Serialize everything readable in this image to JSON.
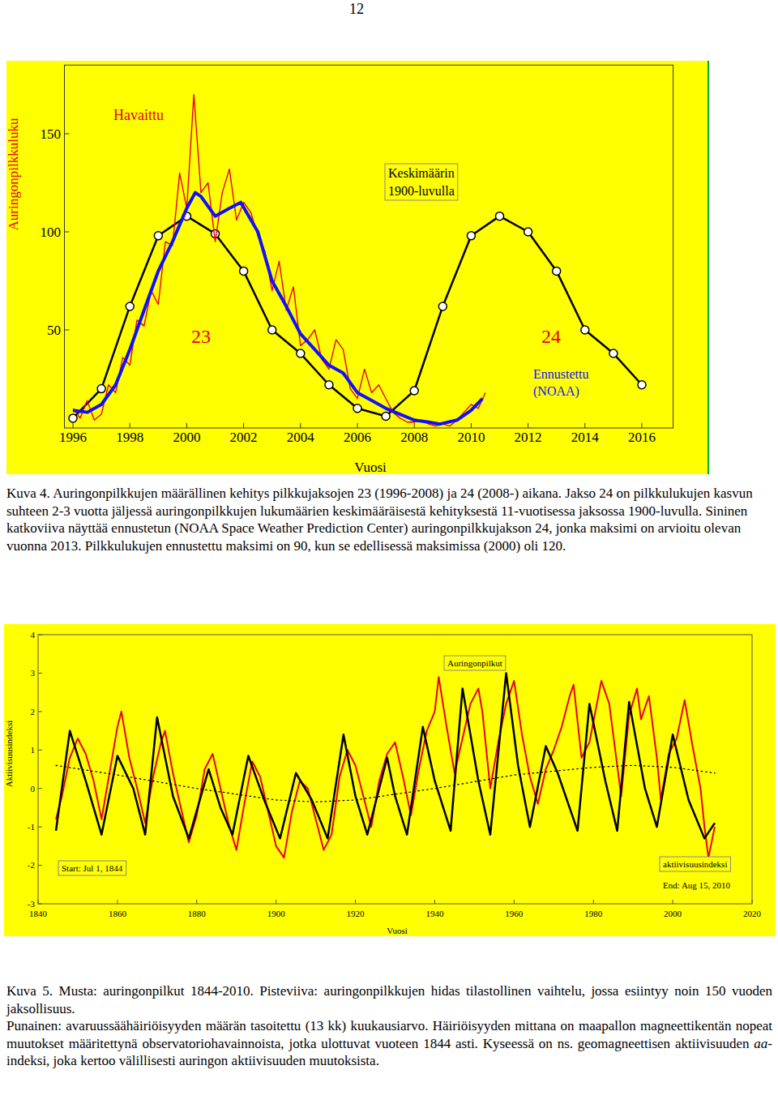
{
  "page_number": "12",
  "chart_data": [
    {
      "type": "line",
      "xlabel": "Vuosi",
      "ylabel": "Auringonpilkkuluku",
      "xlim": [
        1995.7,
        2017.1
      ],
      "ylim": [
        0,
        185
      ],
      "xticks": [
        1996,
        1998,
        2000,
        2002,
        2004,
        2006,
        2008,
        2010,
        2012,
        2014,
        2016
      ],
      "yticks": [
        50,
        100,
        150
      ],
      "annotations": [
        "Havaittu",
        [
          "Keskimäärin",
          "1900-luvulla"
        ],
        "23",
        "24",
        [
          "Ennustettu",
          "(NOAA)"
        ]
      ],
      "series": [
        {
          "color": "#000000",
          "marker": "circle",
          "x": [
            1996,
            1997,
            1998,
            1999,
            2000,
            2001,
            2002,
            2003,
            2004,
            2005,
            2006,
            2007,
            2008,
            2009,
            2010,
            2011,
            2012,
            2013,
            2014,
            2015,
            2016
          ],
          "values": [
            5,
            20,
            62,
            98,
            108,
            99,
            80,
            50,
            38,
            22,
            10,
            6,
            19,
            62,
            98,
            108,
            100,
            80,
            50,
            38,
            22
          ]
        },
        {
          "color": "#e8001c",
          "x": [
            1996,
            1996.25,
            1996.5,
            1996.75,
            1997,
            1997.25,
            1997.5,
            1997.75,
            1998,
            1998.25,
            1998.5,
            1998.75,
            1999,
            1999.25,
            1999.5,
            1999.75,
            2000,
            2000.25,
            2000.5,
            2000.75,
            2001,
            2001.25,
            2001.5,
            2001.75,
            2002,
            2002.25,
            2002.5,
            2002.75,
            2003,
            2003.25,
            2003.5,
            2003.75,
            2004,
            2004.25,
            2004.5,
            2004.75,
            2005,
            2005.25,
            2005.5,
            2005.75,
            2006,
            2006.25,
            2006.5,
            2006.75,
            2007,
            2007.25,
            2007.5,
            2007.75,
            2008,
            2008.25,
            2008.5,
            2008.75,
            2009,
            2009.25,
            2009.5,
            2009.75,
            2010,
            2010.25,
            2010.5
          ],
          "values": [
            10,
            5,
            14,
            4,
            7,
            22,
            18,
            36,
            32,
            55,
            52,
            70,
            63,
            95,
            93,
            130,
            112,
            170,
            120,
            125,
            95,
            120,
            132,
            106,
            115,
            110,
            98,
            90,
            70,
            85,
            60,
            72,
            42,
            45,
            50,
            35,
            30,
            45,
            40,
            20,
            15,
            30,
            18,
            22,
            15,
            8,
            5,
            3,
            3,
            4,
            2,
            1,
            2,
            1,
            4,
            8,
            12,
            10,
            18
          ]
        },
        {
          "color": "#1010ff",
          "x": [
            1996,
            1996.5,
            1997,
            1997.5,
            1998,
            1998.5,
            1999,
            1999.5,
            2000,
            2000.3,
            2000.5,
            2001,
            2001.5,
            2001.9,
            2002.5,
            2003,
            2003.5,
            2004,
            2004.5,
            2005,
            2005.5,
            2006,
            2006.5,
            2007,
            2007.5,
            2008,
            2008.5,
            2008.9,
            2009.5,
            2010,
            2010.4
          ],
          "values": [
            9,
            8,
            12,
            22,
            40,
            60,
            80,
            95,
            112,
            120,
            118,
            108,
            112,
            115,
            100,
            75,
            62,
            48,
            40,
            32,
            28,
            18,
            14,
            10,
            7,
            4,
            3,
            2,
            4,
            9,
            15
          ]
        }
      ]
    },
    {
      "type": "line",
      "xlabel": "Vuosi",
      "ylabel": "Aktiivisuusindeksi",
      "xlim": [
        1840,
        2020
      ],
      "ylim": [
        -3,
        4
      ],
      "xticks": [
        1840,
        1860,
        1880,
        1900,
        1920,
        1940,
        1960,
        1980,
        2000,
        2020
      ],
      "yticks": [
        -3,
        -2,
        -1,
        0,
        1,
        2,
        3,
        4
      ],
      "annotations": [
        "Auringonpilkut",
        "Start: Jul 1, 1844",
        "aktiivisuusindeksi",
        "End: Aug 15, 2010"
      ],
      "series": [
        {
          "color": "#e8001c",
          "x": [
            1844.5,
            1846,
            1848,
            1850,
            1852,
            1854,
            1856,
            1858,
            1860,
            1861,
            1863,
            1865,
            1867,
            1869,
            1871,
            1872,
            1874,
            1876,
            1878,
            1880,
            1882,
            1884,
            1886,
            1888,
            1890,
            1892,
            1894,
            1896,
            1898,
            1900,
            1902,
            1904,
            1906,
            1908,
            1910,
            1912,
            1914,
            1916,
            1918,
            1920,
            1922,
            1924,
            1926,
            1928,
            1930,
            1932,
            1934,
            1936,
            1938,
            1940,
            1941,
            1943,
            1945,
            1947,
            1949,
            1951,
            1952,
            1954,
            1956,
            1958,
            1960,
            1962,
            1964,
            1966,
            1968,
            1970,
            1972,
            1974,
            1975,
            1977,
            1979,
            1982,
            1984,
            1986,
            1987,
            1989,
            1991,
            1992,
            1994,
            1996,
            1997,
            1999,
            2001,
            2003,
            2005,
            2007,
            2008,
            2009,
            2010.6
          ],
          "values": [
            -0.8,
            -0.2,
            0.8,
            1.3,
            0.9,
            0.2,
            -0.8,
            0.4,
            1.6,
            2.0,
            0.8,
            0.0,
            -0.9,
            0.3,
            1.2,
            1.5,
            0.4,
            -0.5,
            -1.4,
            -0.7,
            0.5,
            0.9,
            0.0,
            -0.9,
            -1.6,
            -0.4,
            0.7,
            0.3,
            -0.6,
            -1.5,
            -1.8,
            -0.6,
            0.2,
            0.0,
            -0.8,
            -1.6,
            -1.2,
            0.3,
            1.0,
            0.6,
            -0.2,
            -1.0,
            0.2,
            0.9,
            1.2,
            0.3,
            -0.7,
            0.5,
            1.5,
            2.0,
            2.9,
            1.6,
            0.4,
            1.3,
            2.2,
            2.6,
            2.0,
            0.0,
            1.2,
            2.2,
            2.8,
            1.4,
            0.3,
            -0.4,
            0.5,
            1.0,
            1.6,
            2.4,
            2.7,
            0.8,
            1.2,
            2.8,
            2.2,
            0.6,
            -0.2,
            1.9,
            2.6,
            1.8,
            2.4,
            0.8,
            -0.3,
            0.9,
            1.3,
            2.3,
            1.1,
            0.0,
            -1.0,
            -1.8,
            -1.0
          ]
        },
        {
          "color": "#000000",
          "x": [
            1844.5,
            1848,
            1852,
            1856,
            1860,
            1864,
            1867,
            1870,
            1874,
            1878,
            1883,
            1886,
            1889,
            1893,
            1897,
            1901,
            1905,
            1909,
            1913,
            1917,
            1920,
            1923,
            1928,
            1930,
            1933,
            1937,
            1940,
            1944,
            1947,
            1951,
            1954,
            1958,
            1961,
            1964,
            1968,
            1971,
            1976,
            1979,
            1983,
            1986,
            1989,
            1993,
            1996,
            2000,
            2004,
            2008,
            2010.6
          ],
          "values": [
            -1.1,
            1.5,
            0.2,
            -1.2,
            0.85,
            0.0,
            -1.2,
            1.85,
            -0.2,
            -1.3,
            0.5,
            -0.5,
            -1.2,
            0.85,
            -0.3,
            -1.3,
            0.4,
            -0.3,
            -1.3,
            1.4,
            -0.2,
            -1.2,
            0.8,
            -0.2,
            -1.2,
            1.6,
            0.2,
            -1.1,
            2.6,
            0.2,
            -1.2,
            3.0,
            0.6,
            -1.0,
            1.1,
            0.4,
            -1.1,
            2.2,
            0.2,
            -1.1,
            2.25,
            0.0,
            -1.0,
            1.4,
            -0.3,
            -1.3,
            -0.9
          ]
        },
        {
          "color": "#000000",
          "line_style": "dotted",
          "x": [
            1844.5,
            1860,
            1880,
            1900,
            1910,
            1920,
            1940,
            1960,
            1980,
            1990,
            2000,
            2010.6
          ],
          "values": [
            0.6,
            0.35,
            0.0,
            -0.3,
            -0.35,
            -0.3,
            0.0,
            0.35,
            0.55,
            0.6,
            0.55,
            0.4
          ]
        }
      ]
    }
  ],
  "captions": [
    {
      "paragraphs": [
        [
          "Kuva 4. Auringonpilkkujen määrällinen kehitys pilkkujaksojen 23 (1996-2008) ja 24 (2008-) aikana. Jakso 24 on pilkkulukujen kasvun suhteen 2-3 vuotta jäljessä auringonpilkkujen lukumäärien keskimääräisestä kehityksestä 11-vuotisessa jaksossa 1900-luvulla. Sininen katkoviiva näyttää ennustetun (NOAA Space Weather Prediction Center) auringonpilkkujakson 24, jonka maksimi on arvioitu olevan vuonna 2013. Pilkkulukujen ennustettu maksimi on 90, kun se edellisessä maksimissa (2000) oli 120."
        ]
      ]
    },
    {
      "paragraphs": [
        [
          "Kuva 5. Musta: auringonpilkut 1844-2010. Pisteviiva: auringonpilkkujen hidas tilastollinen vaihtelu, jossa esiintyy noin 150 vuoden jaksollisuus."
        ],
        [
          "Punainen: avaruussäähäiriöisyyden määrän tasoitettu (13 kk) kuukausiarvo. Häiriöisyyden mittana on maapallon magneettikentän nopeat muutokset määritettynä observatoriohavainnoista, jotka ulottuvat vuoteen 1844 asti. Kyseessä on ns. geomagneettisen aktiivisuuden ",
          "aa",
          "-indeksi, joka kertoo välillisesti auringon aktiivisuuden muutoksista."
        ]
      ]
    }
  ]
}
